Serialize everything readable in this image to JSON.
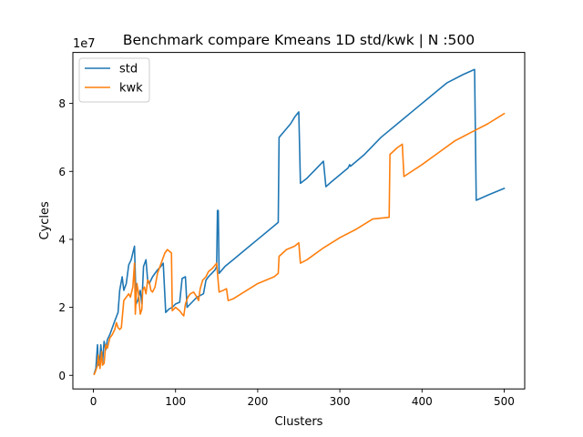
{
  "chart_data": {
    "type": "line",
    "title": "Benchmark compare Kmeans 1D std/kwk | N :500",
    "xlabel": "Clusters",
    "ylabel": "Cycles",
    "y_scale_label": "1e7",
    "xlim": [
      -25,
      525
    ],
    "ylim": [
      -4000000,
      95000000
    ],
    "x_ticks": [
      0,
      100,
      200,
      300,
      400,
      500
    ],
    "x_tick_labels": [
      "0",
      "100",
      "200",
      "300",
      "400",
      "500"
    ],
    "y_ticks": [
      0,
      20000000,
      40000000,
      60000000,
      80000000
    ],
    "y_tick_labels": [
      "0",
      "2",
      "4",
      "6",
      "8"
    ],
    "grid": false,
    "legend_position": "top-left",
    "series": [
      {
        "name": "std",
        "color": "#1f77b4",
        "points": [
          [
            1,
            500000
          ],
          [
            3,
            2000000
          ],
          [
            5,
            9000000
          ],
          [
            6,
            3000000
          ],
          [
            8,
            5000000
          ],
          [
            9,
            9000000
          ],
          [
            11,
            3500000
          ],
          [
            13,
            10000000
          ],
          [
            15,
            7500000
          ],
          [
            17,
            10500000
          ],
          [
            20,
            12000000
          ],
          [
            23,
            14000000
          ],
          [
            26,
            16000000
          ],
          [
            30,
            18500000
          ],
          [
            32,
            25000000
          ],
          [
            35,
            29000000
          ],
          [
            37,
            25000000
          ],
          [
            40,
            27000000
          ],
          [
            43,
            32500000
          ],
          [
            46,
            34000000
          ],
          [
            48,
            36000000
          ],
          [
            50,
            38000000
          ],
          [
            52,
            21000000
          ],
          [
            54,
            22000000
          ],
          [
            57,
            25000000
          ],
          [
            59,
            21000000
          ],
          [
            61,
            32000000
          ],
          [
            64,
            34000000
          ],
          [
            66,
            28000000
          ],
          [
            68,
            27000000
          ],
          [
            72,
            29000000
          ],
          [
            75,
            30000000
          ],
          [
            78,
            31000000
          ],
          [
            82,
            32000000
          ],
          [
            85,
            33000000
          ],
          [
            88,
            18500000
          ],
          [
            92,
            19500000
          ],
          [
            96,
            20000000
          ],
          [
            100,
            21000000
          ],
          [
            105,
            21500000
          ],
          [
            108,
            28500000
          ],
          [
            112,
            29000000
          ],
          [
            114,
            20000000
          ],
          [
            118,
            21000000
          ],
          [
            122,
            22000000
          ],
          [
            126,
            23000000
          ],
          [
            130,
            23500000
          ],
          [
            134,
            24000000
          ],
          [
            137,
            28000000
          ],
          [
            140,
            29000000
          ],
          [
            144,
            30000000
          ],
          [
            148,
            31000000
          ],
          [
            150,
            32000000
          ],
          [
            151,
            48500000
          ],
          [
            152,
            48500000
          ],
          [
            153,
            30000000
          ],
          [
            160,
            32000000
          ],
          [
            170,
            34000000
          ],
          [
            180,
            36000000
          ],
          [
            190,
            38000000
          ],
          [
            200,
            40000000
          ],
          [
            210,
            42000000
          ],
          [
            220,
            44000000
          ],
          [
            225,
            45000000
          ],
          [
            226,
            70000000
          ],
          [
            233,
            72000000
          ],
          [
            240,
            74000000
          ],
          [
            245,
            76000000
          ],
          [
            250,
            77500000
          ],
          [
            252,
            56500000
          ],
          [
            260,
            58000000
          ],
          [
            270,
            60500000
          ],
          [
            280,
            63000000
          ],
          [
            283,
            55500000
          ],
          [
            290,
            57000000
          ],
          [
            300,
            59000000
          ],
          [
            310,
            61000000
          ],
          [
            312,
            62000000
          ],
          [
            313,
            61500000
          ],
          [
            330,
            65000000
          ],
          [
            350,
            70000000
          ],
          [
            370,
            74000000
          ],
          [
            390,
            78000000
          ],
          [
            410,
            82000000
          ],
          [
            430,
            86000000
          ],
          [
            450,
            88500000
          ],
          [
            464,
            90000000
          ],
          [
            466,
            51500000
          ],
          [
            480,
            53000000
          ],
          [
            500,
            55000000
          ]
        ]
      },
      {
        "name": "kwk",
        "color": "#ff7f0e",
        "points": [
          [
            1,
            300000
          ],
          [
            3,
            1500000
          ],
          [
            5,
            3000000
          ],
          [
            6,
            6000000
          ],
          [
            8,
            2000000
          ],
          [
            10,
            7000000
          ],
          [
            11,
            3000000
          ],
          [
            13,
            3500000
          ],
          [
            15,
            9000000
          ],
          [
            17,
            8000000
          ],
          [
            20,
            11000000
          ],
          [
            23,
            12000000
          ],
          [
            26,
            13500000
          ],
          [
            28,
            15500000
          ],
          [
            30,
            14000000
          ],
          [
            32,
            13500000
          ],
          [
            34,
            14000000
          ],
          [
            37,
            22000000
          ],
          [
            40,
            23000000
          ],
          [
            43,
            24000000
          ],
          [
            45,
            23000000
          ],
          [
            48,
            26000000
          ],
          [
            50,
            33000000
          ],
          [
            51,
            18000000
          ],
          [
            53,
            27000000
          ],
          [
            55,
            24000000
          ],
          [
            57,
            18000000
          ],
          [
            59,
            19500000
          ],
          [
            60,
            25000000
          ],
          [
            62,
            26000000
          ],
          [
            64,
            24000000
          ],
          [
            66,
            28000000
          ],
          [
            68,
            27500000
          ],
          [
            70,
            25000000
          ],
          [
            72,
            24500000
          ],
          [
            75,
            26000000
          ],
          [
            78,
            30000000
          ],
          [
            81,
            32000000
          ],
          [
            84,
            34000000
          ],
          [
            87,
            36000000
          ],
          [
            90,
            37000000
          ],
          [
            95,
            36000000
          ],
          [
            96,
            19000000
          ],
          [
            100,
            20000000
          ],
          [
            105,
            19000000
          ],
          [
            108,
            18000000
          ],
          [
            110,
            17500000
          ],
          [
            112,
            21000000
          ],
          [
            115,
            23000000
          ],
          [
            118,
            24000000
          ],
          [
            122,
            24500000
          ],
          [
            126,
            23000000
          ],
          [
            128,
            22000000
          ],
          [
            130,
            25500000
          ],
          [
            133,
            28000000
          ],
          [
            137,
            29000000
          ],
          [
            140,
            30500000
          ],
          [
            145,
            31500000
          ],
          [
            150,
            33000000
          ],
          [
            153,
            24500000
          ],
          [
            158,
            25000000
          ],
          [
            162,
            25500000
          ],
          [
            164,
            22000000
          ],
          [
            170,
            22500000
          ],
          [
            180,
            24000000
          ],
          [
            190,
            25500000
          ],
          [
            200,
            27000000
          ],
          [
            210,
            28000000
          ],
          [
            220,
            29000000
          ],
          [
            225,
            30000000
          ],
          [
            226,
            35000000
          ],
          [
            235,
            37000000
          ],
          [
            245,
            38000000
          ],
          [
            250,
            39000000
          ],
          [
            252,
            33000000
          ],
          [
            260,
            34000000
          ],
          [
            280,
            37500000
          ],
          [
            300,
            40500000
          ],
          [
            320,
            43000000
          ],
          [
            340,
            46000000
          ],
          [
            360,
            46500000
          ],
          [
            361,
            65000000
          ],
          [
            370,
            67000000
          ],
          [
            376,
            68000000
          ],
          [
            378,
            58500000
          ],
          [
            400,
            62000000
          ],
          [
            420,
            65500000
          ],
          [
            440,
            69000000
          ],
          [
            460,
            71500000
          ],
          [
            480,
            74000000
          ],
          [
            500,
            77000000
          ]
        ]
      }
    ]
  }
}
